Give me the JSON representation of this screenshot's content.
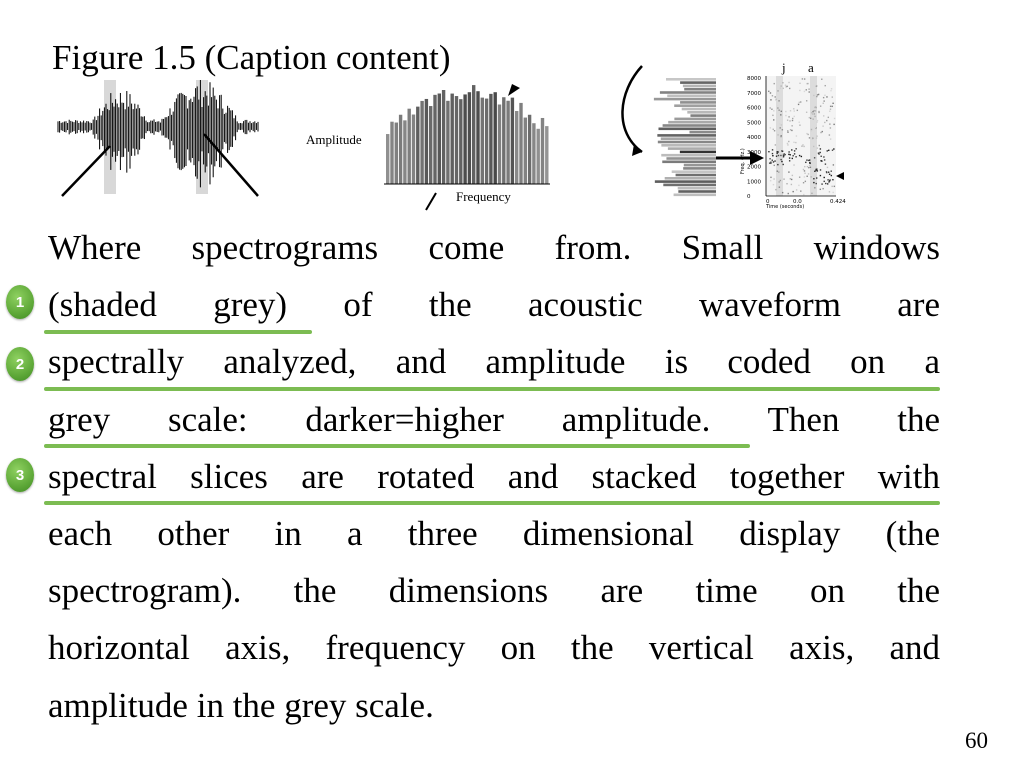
{
  "slide": {
    "title": "Figure 1.5 (Caption content)",
    "page_number": "60"
  },
  "figure": {
    "amplitude_label": "Amplitude",
    "frequency_label": "Frequency",
    "phone_labels": [
      "j",
      "a"
    ],
    "spectrogram": {
      "y_ticks": [
        "8000",
        "7000",
        "6000",
        "5000",
        "4000",
        "3000",
        "2000",
        "1000",
        "0"
      ],
      "y_axis_label": "Freq. (Hz.)",
      "x_ticks": [
        "0",
        "0.0",
        "0.424"
      ],
      "x_axis_label": "Time (seconds)"
    }
  },
  "caption": {
    "lines": [
      "Where spectrograms come from. Small windows",
      "(shaded grey) of the acoustic waveform are",
      "spectrally analyzed, and amplitude is coded on a",
      "grey scale: darker=higher amplitude. Then the",
      "spectral slices are rotated and stacked together with",
      "each other in a three dimensional display (the",
      "spectrogram). the dimensions are time on the",
      "horizontal axis, frequency on the vertical axis, and",
      "amplitude in the grey scale."
    ]
  },
  "annotations": {
    "accent_color": "#7cbc52",
    "badges": [
      "1",
      "2",
      "3"
    ]
  }
}
